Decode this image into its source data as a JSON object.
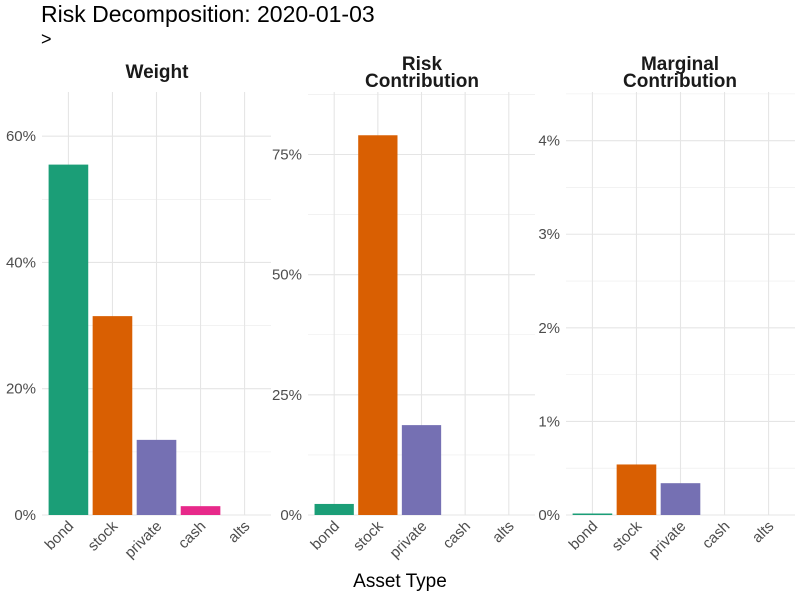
{
  "title": "Risk Decomposition: 2020-01-03",
  "subtitle": ">",
  "chart_data": {
    "type": "bar",
    "xlabel": "Asset Type",
    "ylabel": "",
    "categories": [
      "bond",
      "stock",
      "private",
      "cash",
      "alts"
    ],
    "colors": [
      "#1b9e77",
      "#d95f02",
      "#7570b3",
      "#e7298a",
      "#66a61e"
    ],
    "grid": true,
    "facets": [
      {
        "title_lines": [
          "Weight"
        ],
        "values": [
          0.555,
          0.315,
          0.119,
          0.014,
          0.0
        ],
        "ylim": [
          0,
          0.67
        ],
        "ticks": [
          0,
          0.2,
          0.4,
          0.6
        ],
        "tick_labels": [
          "0%",
          "20%",
          "40%",
          "60%"
        ]
      },
      {
        "title_lines": [
          "Risk",
          "Contribution"
        ],
        "values": [
          0.023,
          0.79,
          0.187,
          0.0,
          0.0
        ],
        "ylim": [
          0,
          0.88
        ],
        "ticks": [
          0,
          0.25,
          0.5,
          0.75
        ],
        "tick_labels": [
          "0%",
          "25%",
          "50%",
          "75%"
        ]
      },
      {
        "title_lines": [
          "Marginal",
          "Contribution"
        ],
        "values": [
          0.0001,
          0.0054,
          0.0034,
          0.0,
          0.0
        ],
        "ylim": [
          0,
          0.0452
        ],
        "ticks": [
          0,
          0.01,
          0.02,
          0.03,
          0.04
        ],
        "tick_labels": [
          "0%",
          "1%",
          "2%",
          "3%",
          "4%"
        ]
      }
    ]
  }
}
